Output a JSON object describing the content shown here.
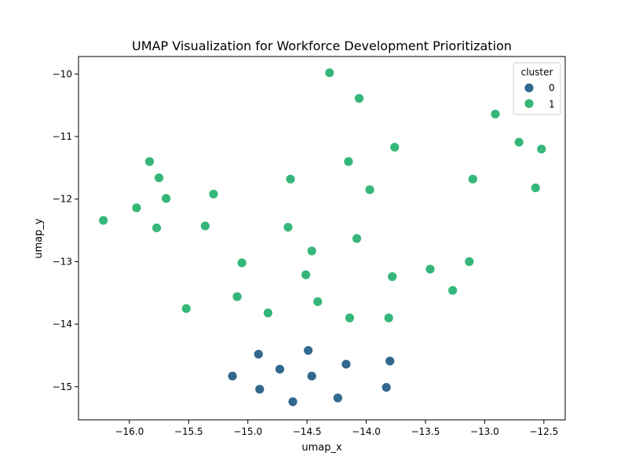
{
  "chart_data": {
    "type": "scatter",
    "title": "UMAP Visualization for Workforce Development Prioritization",
    "xlabel": "umap_x",
    "ylabel": "umap_y",
    "xlim": [
      -16.43,
      -12.32
    ],
    "ylim": [
      -15.53,
      -9.72
    ],
    "x_ticks": [
      -16.0,
      -15.5,
      -15.0,
      -14.5,
      -14.0,
      -13.5,
      -13.0,
      -12.5
    ],
    "x_tick_labels": [
      "−16.0",
      "−15.5",
      "−15.0",
      "−14.5",
      "−14.0",
      "−13.5",
      "−13.0",
      "−12.5"
    ],
    "y_ticks": [
      -15,
      -14,
      -13,
      -12,
      -11,
      -10
    ],
    "y_tick_labels": [
      "−15",
      "−14",
      "−13",
      "−12",
      "−11",
      "−10"
    ],
    "grid": false,
    "legend": {
      "title": "cluster",
      "placement": "top-right",
      "entries": [
        {
          "label": "0",
          "color": "#31688e"
        },
        {
          "label": "1",
          "color": "#35b779"
        }
      ]
    },
    "series": [
      {
        "name": "0",
        "color": "#31688e",
        "points": [
          [
            -14.49,
            -14.42
          ],
          [
            -14.91,
            -14.48
          ],
          [
            -14.73,
            -14.72
          ],
          [
            -14.17,
            -14.64
          ],
          [
            -13.8,
            -14.59
          ],
          [
            -15.13,
            -14.83
          ],
          [
            -14.46,
            -14.83
          ],
          [
            -14.9,
            -15.04
          ],
          [
            -13.83,
            -15.01
          ],
          [
            -14.24,
            -15.18
          ],
          [
            -14.62,
            -15.24
          ]
        ]
      },
      {
        "name": "1",
        "color": "#35b779",
        "points": [
          [
            -14.31,
            -9.98
          ],
          [
            -14.06,
            -10.39
          ],
          [
            -12.91,
            -10.64
          ],
          [
            -12.71,
            -11.09
          ],
          [
            -12.52,
            -11.2
          ],
          [
            -13.76,
            -11.17
          ],
          [
            -14.15,
            -11.4
          ],
          [
            -15.83,
            -11.4
          ],
          [
            -15.75,
            -11.66
          ],
          [
            -14.64,
            -11.68
          ],
          [
            -13.1,
            -11.68
          ],
          [
            -13.97,
            -11.85
          ],
          [
            -12.57,
            -11.82
          ],
          [
            -15.29,
            -11.92
          ],
          [
            -15.69,
            -11.99
          ],
          [
            -15.94,
            -12.14
          ],
          [
            -16.22,
            -12.34
          ],
          [
            -15.77,
            -12.46
          ],
          [
            -15.36,
            -12.43
          ],
          [
            -14.66,
            -12.45
          ],
          [
            -14.08,
            -12.63
          ],
          [
            -14.46,
            -12.83
          ],
          [
            -15.05,
            -13.02
          ],
          [
            -13.13,
            -13.0
          ],
          [
            -13.46,
            -13.12
          ],
          [
            -14.51,
            -13.21
          ],
          [
            -13.78,
            -13.24
          ],
          [
            -13.27,
            -13.46
          ],
          [
            -15.09,
            -13.56
          ],
          [
            -14.41,
            -13.64
          ],
          [
            -15.52,
            -13.75
          ],
          [
            -14.83,
            -13.82
          ],
          [
            -14.14,
            -13.9
          ],
          [
            -13.81,
            -13.9
          ]
        ]
      }
    ]
  }
}
